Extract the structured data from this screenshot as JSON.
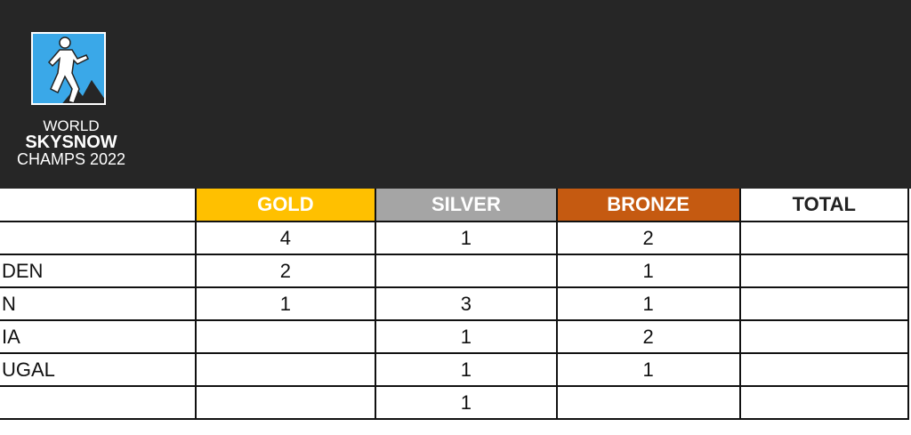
{
  "logo": {
    "line1": "WORLD",
    "line2": "SKYSNOW",
    "line3": "CHAMPS 2022",
    "icon": "skyrunner-mountain-logo"
  },
  "colors": {
    "background_header": "#262626",
    "gold": "#ffc000",
    "silver": "#a5a5a5",
    "bronze": "#c55a11",
    "logo_blue": "#3aa8e8"
  },
  "table": {
    "headers": {
      "country": "",
      "gold": "GOLD",
      "silver": "SILVER",
      "bronze": "BRONZE",
      "total": "TOTAL"
    },
    "rows": [
      {
        "country": "",
        "gold": "4",
        "silver": "1",
        "bronze": "2",
        "total": ""
      },
      {
        "country": "DEN",
        "gold": "2",
        "silver": "",
        "bronze": "1",
        "total": ""
      },
      {
        "country": "N",
        "gold": "1",
        "silver": "3",
        "bronze": "1",
        "total": ""
      },
      {
        "country": "IA",
        "gold": "",
        "silver": "1",
        "bronze": "2",
        "total": ""
      },
      {
        "country": "UGAL",
        "gold": "",
        "silver": "1",
        "bronze": "1",
        "total": ""
      },
      {
        "country": "",
        "gold": "",
        "silver": "1",
        "bronze": "",
        "total": ""
      }
    ]
  }
}
